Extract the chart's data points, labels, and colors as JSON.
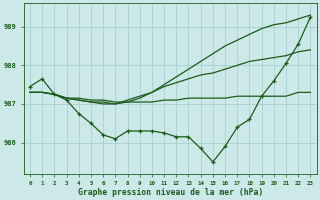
{
  "xlabel": "Graphe pression niveau de la mer (hPa)",
  "x": [
    0,
    1,
    2,
    3,
    4,
    5,
    6,
    7,
    8,
    9,
    10,
    11,
    12,
    13,
    14,
    15,
    16,
    17,
    18,
    19,
    20,
    21,
    22,
    23
  ],
  "line1": [
    987.45,
    987.65,
    987.25,
    987.1,
    986.75,
    986.5,
    986.2,
    986.1,
    986.3,
    986.3,
    986.3,
    986.25,
    986.15,
    986.15,
    985.85,
    985.5,
    985.9,
    986.4,
    986.6,
    987.2,
    987.6,
    988.05,
    988.55,
    989.25
  ],
  "line2": [
    987.3,
    987.3,
    987.25,
    987.15,
    987.15,
    987.1,
    987.1,
    987.05,
    987.05,
    987.05,
    987.05,
    987.1,
    987.1,
    987.15,
    987.15,
    987.15,
    987.15,
    987.2,
    987.2,
    987.2,
    987.2,
    987.2,
    987.3,
    987.3
  ],
  "line3": [
    987.3,
    987.3,
    987.25,
    987.15,
    987.1,
    987.05,
    987.05,
    987.0,
    987.1,
    987.2,
    987.3,
    987.45,
    987.55,
    987.65,
    987.75,
    987.8,
    987.9,
    988.0,
    988.1,
    988.15,
    988.2,
    988.25,
    988.35,
    988.4
  ],
  "line4": [
    987.3,
    987.3,
    987.25,
    987.15,
    987.1,
    987.05,
    987.0,
    987.0,
    987.05,
    987.15,
    987.3,
    987.5,
    987.7,
    987.9,
    988.1,
    988.3,
    988.5,
    988.65,
    988.8,
    988.95,
    989.05,
    989.1,
    989.2,
    989.3
  ],
  "ylim": [
    985.2,
    989.6
  ],
  "yticks": [
    986,
    987,
    988,
    989
  ],
  "line_color": "#1a5c1a",
  "bg_color": "#cce8e8",
  "grid_color": "#a0cccc",
  "label_color": "#1a5c1a"
}
